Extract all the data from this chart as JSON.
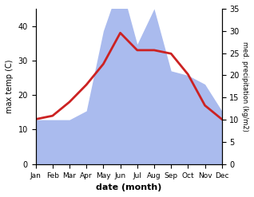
{
  "months": [
    "Jan",
    "Feb",
    "Mar",
    "Apr",
    "May",
    "Jun",
    "Jul",
    "Aug",
    "Sep",
    "Oct",
    "Nov",
    "Dec"
  ],
  "month_indices": [
    1,
    2,
    3,
    4,
    5,
    6,
    7,
    8,
    9,
    10,
    11,
    12
  ],
  "temp": [
    13,
    14,
    18,
    23,
    29,
    38,
    33,
    33,
    32,
    26,
    17,
    13
  ],
  "precip": [
    10,
    10,
    10,
    12,
    30,
    41,
    27,
    35,
    21,
    20,
    18,
    12
  ],
  "temp_color": "#cc2222",
  "precip_color": "#aabbee",
  "title": "",
  "xlabel": "date (month)",
  "ylabel_left": "max temp (C)",
  "ylabel_right": "med. precipitation (kg/m2)",
  "ylim_left": [
    0,
    45
  ],
  "ylim_right": [
    0,
    35
  ],
  "yticks_left": [
    0,
    10,
    20,
    30,
    40
  ],
  "yticks_right": [
    0,
    5,
    10,
    15,
    20,
    25,
    30,
    35
  ],
  "background_color": "#ffffff",
  "line_width": 2.0
}
